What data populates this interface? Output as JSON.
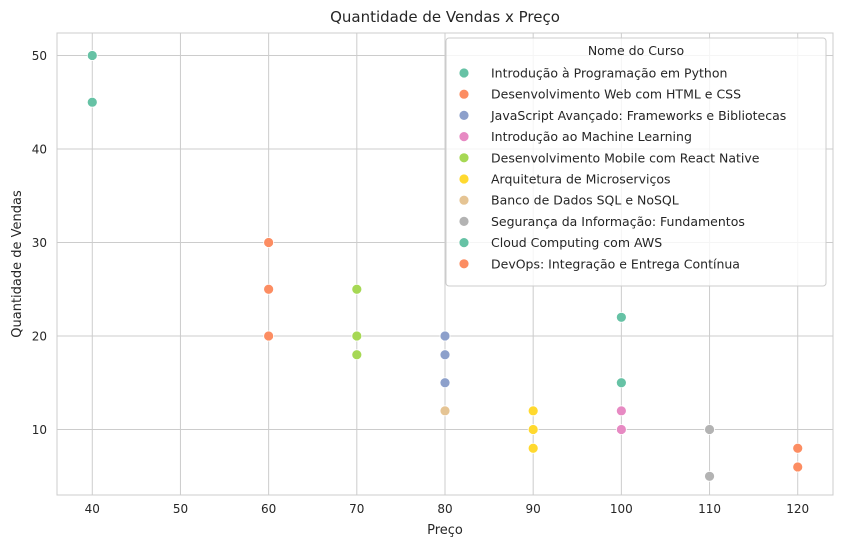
{
  "chart_data": {
    "type": "scatter",
    "title": "Quantidade de Vendas x Preço",
    "xlabel": "Preço",
    "ylabel": "Quantidade de Vendas",
    "xlim": [
      36,
      124
    ],
    "ylim": [
      3,
      52.4
    ],
    "xticks": [
      40,
      50,
      60,
      70,
      80,
      90,
      100,
      110,
      120
    ],
    "yticks": [
      10,
      20,
      30,
      40,
      50
    ],
    "grid": true,
    "legend": {
      "title": "Nome do Curso",
      "placement": "top-right"
    },
    "series": [
      {
        "name": "Introdução à Programação em Python",
        "color": "#66c2a5",
        "points": [
          [
            40,
            50
          ],
          [
            40,
            45
          ]
        ]
      },
      {
        "name": "Desenvolvimento Web com HTML e CSS",
        "color": "#fc8d62",
        "points": [
          [
            60,
            30
          ],
          [
            60,
            25
          ],
          [
            60,
            20
          ]
        ]
      },
      {
        "name": "JavaScript Avançado: Frameworks e Bibliotecas",
        "color": "#8da0cb",
        "points": [
          [
            80,
            20
          ],
          [
            80,
            18
          ],
          [
            80,
            15
          ]
        ]
      },
      {
        "name": "Introdução ao Machine Learning",
        "color": "#e78ac3",
        "points": [
          [
            100,
            12
          ],
          [
            100,
            10
          ]
        ]
      },
      {
        "name": "Desenvolvimento Mobile com React Native",
        "color": "#a6d854",
        "points": [
          [
            70,
            25
          ],
          [
            70,
            20
          ],
          [
            70,
            18
          ]
        ]
      },
      {
        "name": "Arquitetura de Microserviços",
        "color": "#ffd92f",
        "points": [
          [
            90,
            12
          ],
          [
            90,
            10
          ],
          [
            90,
            8
          ]
        ]
      },
      {
        "name": "Banco de Dados SQL e NoSQL",
        "color": "#e5c494",
        "points": [
          [
            80,
            12
          ]
        ]
      },
      {
        "name": "Segurança da Informação: Fundamentos",
        "color": "#b3b3b3",
        "points": [
          [
            110,
            10
          ],
          [
            110,
            5
          ]
        ]
      },
      {
        "name": "Cloud Computing com AWS",
        "color": "#66c2a5",
        "points": [
          [
            100,
            22
          ],
          [
            100,
            15
          ]
        ]
      },
      {
        "name": "DevOps: Integração e Entrega Contínua",
        "color": "#fc8d62",
        "points": [
          [
            120,
            8
          ],
          [
            120,
            6
          ]
        ]
      }
    ]
  }
}
